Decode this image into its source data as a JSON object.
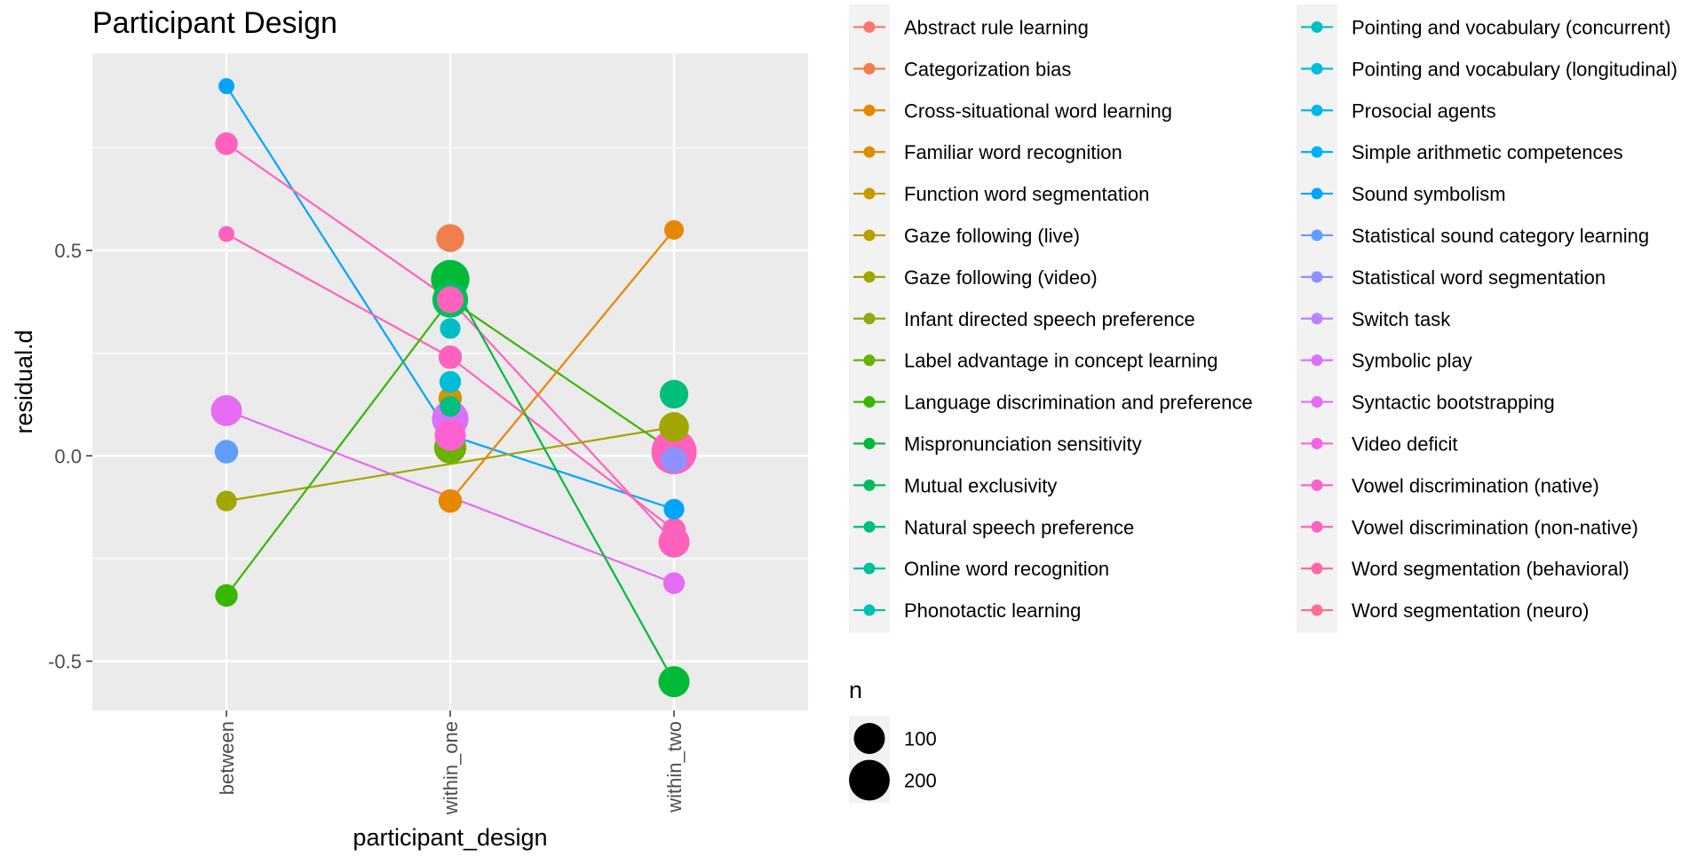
{
  "chart_data": {
    "type": "scatter",
    "title": "Participant Design",
    "xlabel": "participant_design",
    "ylabel": "residual.d",
    "categories": [
      "between",
      "within_one",
      "within_two"
    ],
    "y_ticks": [
      -0.5,
      0.0,
      0.5
    ],
    "y_tick_labels": [
      "-0.5",
      "0.0",
      "0.5"
    ],
    "ylim": [
      -0.62,
      0.98
    ],
    "grid": true,
    "legend_position": "right",
    "colors": {
      "panel_background": "#EBEBEB",
      "grid": "#FFFFFF",
      "text": "#000000",
      "tick_text": "#4D4D4D"
    },
    "legend": {
      "title": "",
      "entries": [
        {
          "name": "Abstract rule learning",
          "color": "#F8766D"
        },
        {
          "name": "Categorization bias",
          "color": "#F07F4D"
        },
        {
          "name": "Cross-situational word learning",
          "color": "#E58700"
        },
        {
          "name": "Familiar word recognition",
          "color": "#D89000"
        },
        {
          "name": "Function word segmentation",
          "color": "#C99800"
        },
        {
          "name": "Gaze following (live)",
          "color": "#B79F00"
        },
        {
          "name": "Gaze following (video)",
          "color": "#A3A500"
        },
        {
          "name": "Infant directed speech preference",
          "color": "#8EAB12"
        },
        {
          "name": "Label advantage in concept learning",
          "color": "#6BB100"
        },
        {
          "name": "Language discrimination and preference",
          "color": "#39B600"
        },
        {
          "name": "Mispronunciation sensitivity",
          "color": "#00BA38"
        },
        {
          "name": "Mutual exclusivity",
          "color": "#00BD5C"
        },
        {
          "name": "Natural speech preference",
          "color": "#00BF7D"
        },
        {
          "name": "Online word recognition",
          "color": "#00C09B"
        },
        {
          "name": "Phonotactic learning",
          "color": "#00C1B4"
        },
        {
          "name": "Pointing and vocabulary (concurrent)",
          "color": "#00BFC4"
        },
        {
          "name": "Pointing and vocabulary (longitudinal)",
          "color": "#00BCD8"
        },
        {
          "name": "Prosocial agents",
          "color": "#00B8E7"
        },
        {
          "name": "Simple arithmetic competences",
          "color": "#00B0F6"
        },
        {
          "name": "Sound symbolism",
          "color": "#00A5FF"
        },
        {
          "name": "Statistical sound category learning",
          "color": "#619CFF"
        },
        {
          "name": "Statistical word segmentation",
          "color": "#8F91FF"
        },
        {
          "name": "Switch task",
          "color": "#B983FF"
        },
        {
          "name": "Symbolic play",
          "color": "#DB72FB"
        },
        {
          "name": "Syntactic bootstrapping",
          "color": "#E76BF3"
        },
        {
          "name": "Video deficit",
          "color": "#F564E3"
        },
        {
          "name": "Vowel discrimination (native)",
          "color": "#FD61D1"
        },
        {
          "name": "Vowel discrimination (non-native)",
          "color": "#FF62BC"
        },
        {
          "name": "Word segmentation (behavioral)",
          "color": "#FF67A4"
        },
        {
          "name": "Word segmentation (neuro)",
          "color": "#FF6C91"
        }
      ]
    },
    "size_legend": {
      "title": "n",
      "items": [
        {
          "label": "100",
          "n": 100
        },
        {
          "label": "200",
          "n": 200
        }
      ]
    },
    "points": [
      {
        "x": "between",
        "y": 0.9,
        "n": 12,
        "color": "#00A5FF"
      },
      {
        "x": "between",
        "y": 0.76,
        "n": 40,
        "color": "#FF62BC"
      },
      {
        "x": "between",
        "y": 0.54,
        "n": 12,
        "color": "#FF62BC"
      },
      {
        "x": "between",
        "y": 0.11,
        "n": 100,
        "color": "#E76BF3"
      },
      {
        "x": "between",
        "y": 0.01,
        "n": 45,
        "color": "#619CFF"
      },
      {
        "x": "between",
        "y": -0.11,
        "n": 30,
        "color": "#A3A500"
      },
      {
        "x": "between",
        "y": -0.34,
        "n": 40,
        "color": "#39B600"
      },
      {
        "x": "within_one",
        "y": 0.53,
        "n": 75,
        "color": "#F07F4D"
      },
      {
        "x": "within_one",
        "y": 0.43,
        "n": 175,
        "color": "#00BA38"
      },
      {
        "x": "within_one",
        "y": 0.38,
        "n": 145,
        "color": "#00BD5C"
      },
      {
        "x": "within_one",
        "y": 0.38,
        "n": 65,
        "color": "#FF62BC"
      },
      {
        "x": "within_one",
        "y": 0.31,
        "n": 30,
        "color": "#00BFC4"
      },
      {
        "x": "within_one",
        "y": 0.24,
        "n": 45,
        "color": "#FF62BC"
      },
      {
        "x": "within_one",
        "y": 0.18,
        "n": 35,
        "color": "#00BCD8"
      },
      {
        "x": "within_one",
        "y": 0.14,
        "n": 45,
        "color": "#C99800"
      },
      {
        "x": "within_one",
        "y": 0.12,
        "n": 30,
        "color": "#00BF7D"
      },
      {
        "x": "within_one",
        "y": 0.09,
        "n": 155,
        "color": "#DB72FB"
      },
      {
        "x": "within_one",
        "y": 0.05,
        "n": 100,
        "color": "#FD61D1"
      },
      {
        "x": "within_one",
        "y": 0.02,
        "n": 110,
        "color": "#6BB100"
      },
      {
        "x": "within_one",
        "y": -0.11,
        "n": 45,
        "color": "#E58700"
      },
      {
        "x": "within_two",
        "y": 0.55,
        "n": 25,
        "color": "#E58700"
      },
      {
        "x": "within_two",
        "y": 0.15,
        "n": 80,
        "color": "#00BF7D"
      },
      {
        "x": "within_two",
        "y": 0.07,
        "n": 90,
        "color": "#A3A500"
      },
      {
        "x": "within_two",
        "y": 0.01,
        "n": 260,
        "color": "#FF62BC"
      },
      {
        "x": "within_two",
        "y": -0.01,
        "n": 60,
        "color": "#8F91FF"
      },
      {
        "x": "within_two",
        "y": -0.13,
        "n": 30,
        "color": "#00A5FF"
      },
      {
        "x": "within_two",
        "y": -0.18,
        "n": 45,
        "color": "#FF62BC"
      },
      {
        "x": "within_two",
        "y": -0.21,
        "n": 100,
        "color": "#FF62BC"
      },
      {
        "x": "within_two",
        "y": -0.31,
        "n": 35,
        "color": "#E76BF3"
      },
      {
        "x": "within_two",
        "y": -0.55,
        "n": 100,
        "color": "#00BA38"
      }
    ],
    "lines": [
      {
        "color": "#00A5FF",
        "points": [
          {
            "x": "between",
            "y": 0.9
          },
          {
            "x": "within_one",
            "y": 0.05
          },
          {
            "x": "within_two",
            "y": -0.13
          }
        ]
      },
      {
        "color": "#FF62BC",
        "points": [
          {
            "x": "between",
            "y": 0.76
          },
          {
            "x": "within_one",
            "y": 0.38
          },
          {
            "x": "within_two",
            "y": -0.21
          }
        ]
      },
      {
        "color": "#FF62BC",
        "points": [
          {
            "x": "between",
            "y": 0.54
          },
          {
            "x": "within_one",
            "y": 0.24
          },
          {
            "x": "within_two",
            "y": -0.18
          }
        ]
      },
      {
        "color": "#E76BF3",
        "points": [
          {
            "x": "between",
            "y": 0.11
          },
          {
            "x": "within_two",
            "y": -0.31
          }
        ]
      },
      {
        "color": "#A3A500",
        "points": [
          {
            "x": "between",
            "y": -0.11
          },
          {
            "x": "within_two",
            "y": 0.07
          }
        ]
      },
      {
        "color": "#39B600",
        "points": [
          {
            "x": "between",
            "y": -0.34
          },
          {
            "x": "within_one",
            "y": 0.38
          },
          {
            "x": "within_two",
            "y": 0.01
          }
        ]
      },
      {
        "color": "#00BA38",
        "points": [
          {
            "x": "within_one",
            "y": 0.43
          },
          {
            "x": "within_two",
            "y": -0.55
          }
        ]
      },
      {
        "color": "#E58700",
        "points": [
          {
            "x": "within_one",
            "y": -0.11
          },
          {
            "x": "within_two",
            "y": 0.55
          }
        ]
      }
    ]
  }
}
